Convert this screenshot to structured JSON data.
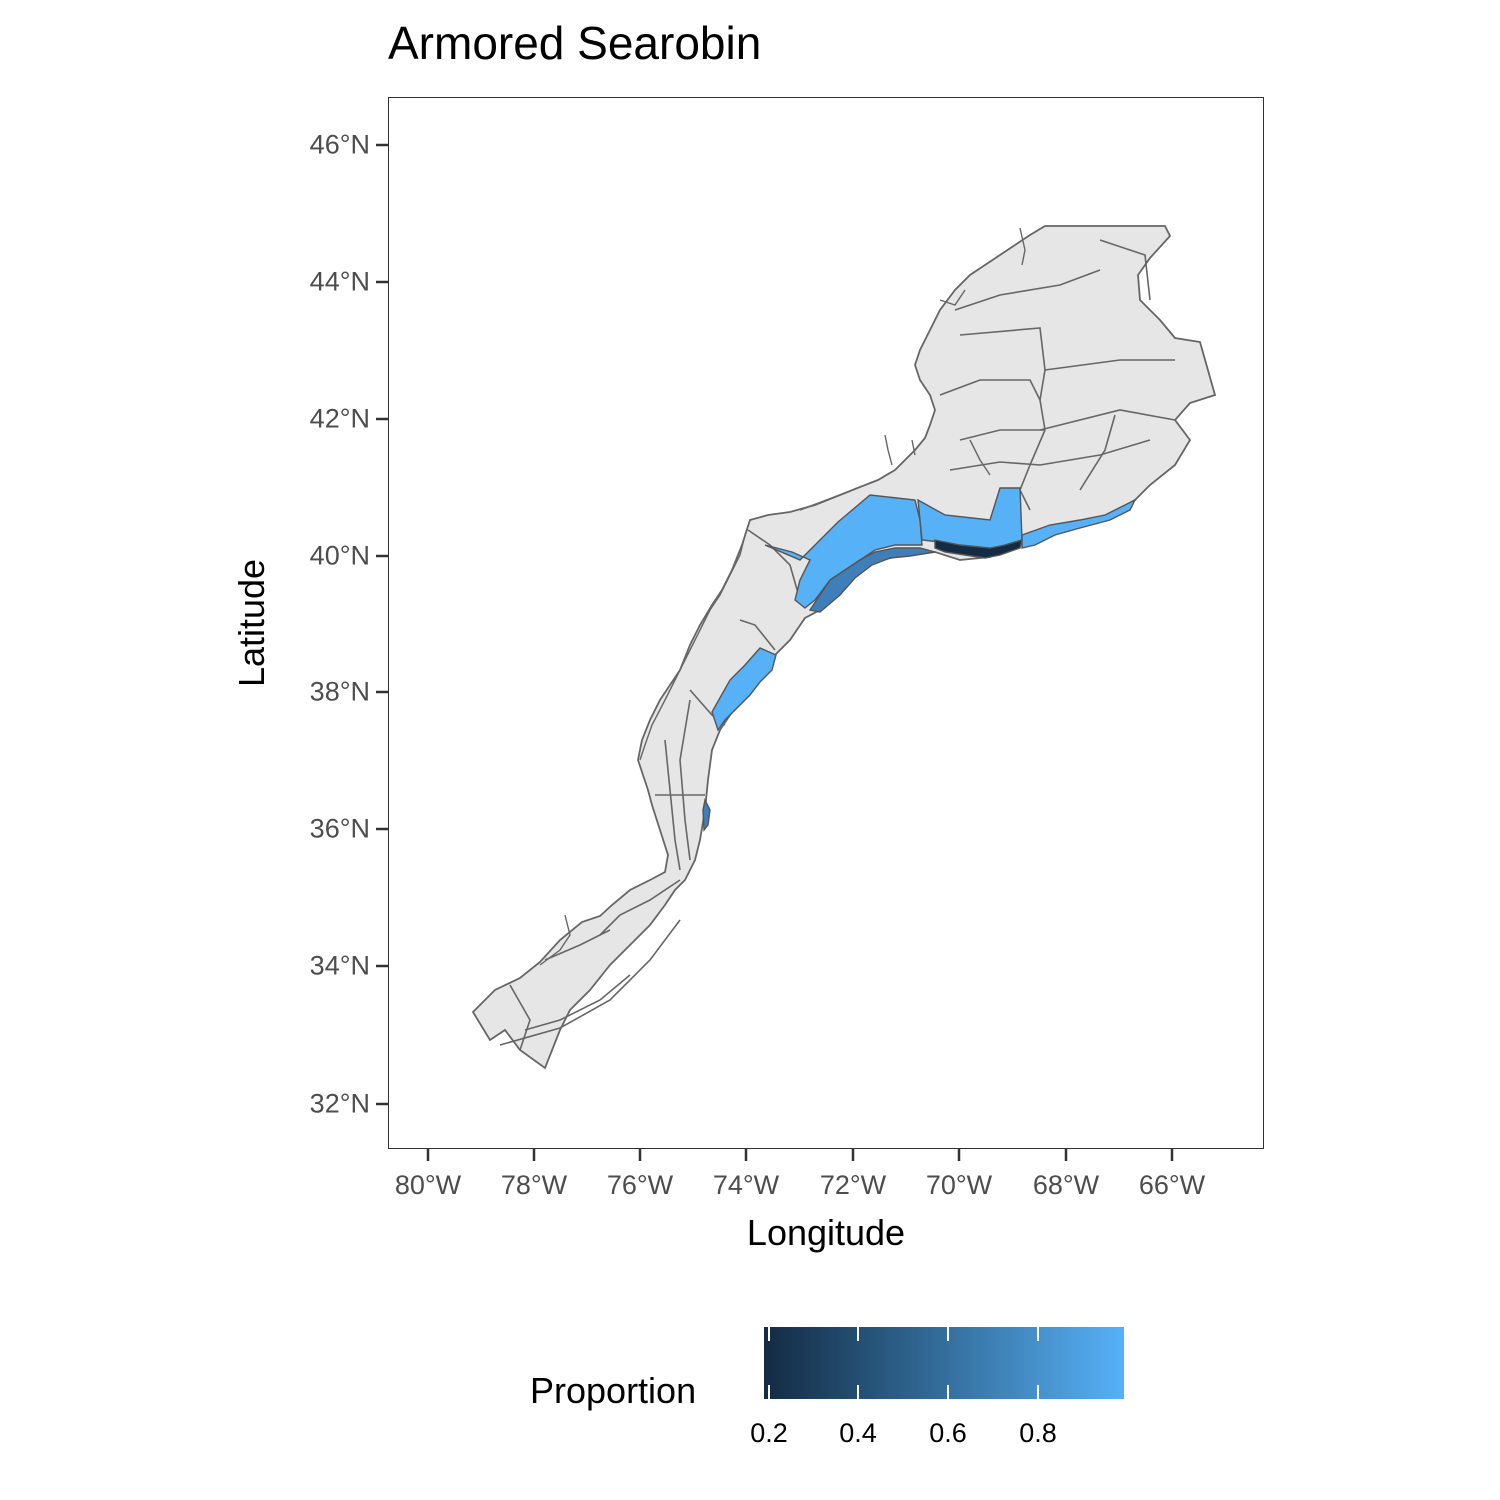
{
  "title": "Armored Searobin",
  "x_axis": {
    "label": "Longitude",
    "ticks": [
      "80°W",
      "78°W",
      "76°W",
      "74°W",
      "72°W",
      "70°W",
      "68°W",
      "66°W"
    ]
  },
  "y_axis": {
    "label": "Latitude",
    "ticks": [
      "46°N",
      "44°N",
      "42°N",
      "40°N",
      "38°N",
      "36°N",
      "34°N",
      "32°N"
    ]
  },
  "legend": {
    "title": "Proportion",
    "ticks": [
      "0.2",
      "0.4",
      "0.6",
      "0.8"
    ],
    "low_color": "#132b43",
    "high_color": "#56b1f7",
    "placement": "bottom"
  },
  "colors": {
    "land_fill": "#e6e6e6",
    "stroke": "#666666",
    "high_proportion": "#56b1f7",
    "low_proportion": "#132b43",
    "mid_proportion": "#3f7fb9"
  },
  "chart_data": {
    "type": "choropleth",
    "title": "Armored Searobin",
    "xlabel": "Longitude",
    "ylabel": "Latitude",
    "xlim": [
      -80.8,
      -64.3
    ],
    "ylim": [
      31.4,
      46.7
    ],
    "grid": false,
    "fill_variable": "Proportion",
    "fill_range": [
      0.15,
      1.0
    ],
    "highlighted_strata": [
      {
        "name": "",
        "proportion": 1.0
      },
      {
        "name": "",
        "proportion": 1.0
      },
      {
        "name": "",
        "proportion": 1.0
      },
      {
        "name": "",
        "proportion": 1.0
      },
      {
        "name": "",
        "proportion": 0.15
      },
      {
        "name": "",
        "proportion": 0.5
      }
    ]
  }
}
